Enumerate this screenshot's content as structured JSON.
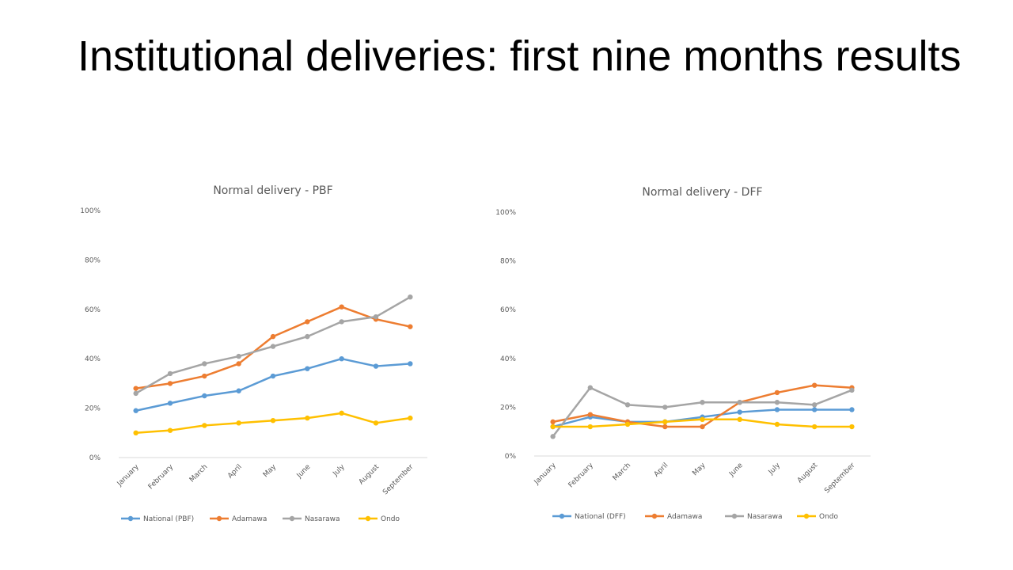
{
  "slide": {
    "title": "Institutional deliveries: first nine months results"
  },
  "chart_data": [
    {
      "type": "line",
      "title": "Normal delivery - PBF",
      "xlabel": "",
      "ylabel": "",
      "categories": [
        "January",
        "February",
        "March",
        "April",
        "May",
        "June",
        "July",
        "August",
        "September"
      ],
      "ylim": [
        0,
        1
      ],
      "y_tick_labels": [
        "0%",
        "20%",
        "40%",
        "60%",
        "80%",
        "100%"
      ],
      "grid": false,
      "legend": "bottom",
      "series": [
        {
          "name": "National (PBF)",
          "color": "#5b9bd5",
          "values": [
            0.19,
            0.22,
            0.25,
            0.27,
            0.33,
            0.36,
            0.4,
            0.37,
            0.38
          ]
        },
        {
          "name": "Adamawa",
          "color": "#ed7d31",
          "values": [
            0.28,
            0.3,
            0.33,
            0.38,
            0.49,
            0.55,
            0.61,
            0.56,
            0.53
          ]
        },
        {
          "name": "Nasarawa",
          "color": "#a5a5a5",
          "values": [
            0.26,
            0.34,
            0.38,
            0.41,
            0.45,
            0.49,
            0.55,
            0.57,
            0.65
          ]
        },
        {
          "name": "Ondo",
          "color": "#ffc000",
          "values": [
            0.1,
            0.11,
            0.13,
            0.14,
            0.15,
            0.16,
            0.18,
            0.14,
            0.16
          ]
        }
      ]
    },
    {
      "type": "line",
      "title": "Normal delivery - DFF",
      "xlabel": "",
      "ylabel": "",
      "categories": [
        "January",
        "February",
        "March",
        "April",
        "May",
        "June",
        "July",
        "August",
        "September"
      ],
      "ylim": [
        0,
        1
      ],
      "y_tick_labels": [
        "0%",
        "20%",
        "40%",
        "60%",
        "80%",
        "100%"
      ],
      "grid": false,
      "legend": "bottom",
      "series": [
        {
          "name": "National (DFF)",
          "color": "#5b9bd5",
          "values": [
            0.12,
            0.16,
            0.14,
            0.14,
            0.16,
            0.18,
            0.19,
            0.19,
            0.19
          ]
        },
        {
          "name": "Adamawa",
          "color": "#ed7d31",
          "values": [
            0.14,
            0.17,
            0.14,
            0.12,
            0.12,
            0.22,
            0.26,
            0.29,
            0.28
          ]
        },
        {
          "name": "Nasarawa",
          "color": "#a5a5a5",
          "values": [
            0.08,
            0.28,
            0.21,
            0.2,
            0.22,
            0.22,
            0.22,
            0.21,
            0.27
          ]
        },
        {
          "name": "Ondo",
          "color": "#ffc000",
          "values": [
            0.12,
            0.12,
            0.13,
            0.14,
            0.15,
            0.15,
            0.13,
            0.12,
            0.12
          ]
        }
      ]
    }
  ]
}
